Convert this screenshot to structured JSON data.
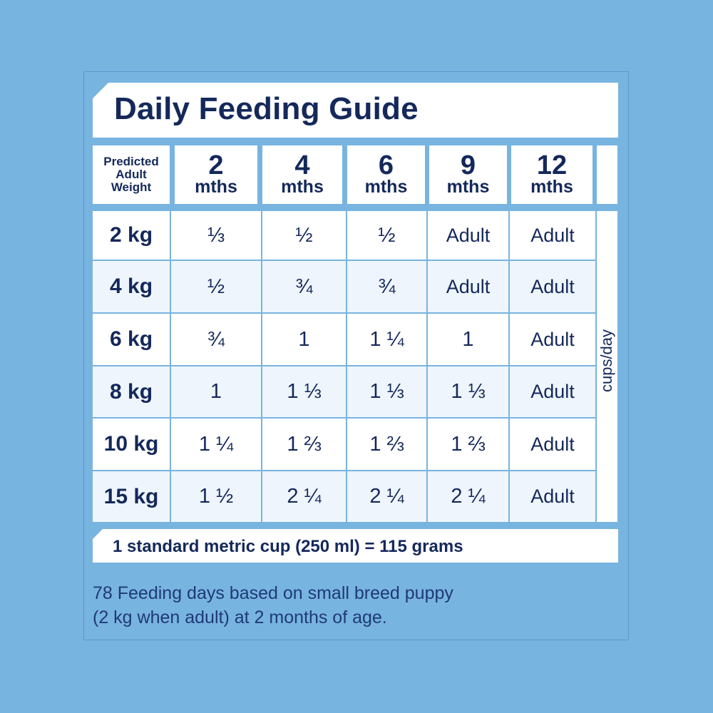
{
  "title": "Daily Feeding Guide",
  "header": {
    "weight_label_lines": [
      "Predicted",
      "Adult",
      "Weight"
    ],
    "columns": [
      {
        "num": "2",
        "unit": "mths"
      },
      {
        "num": "4",
        "unit": "mths"
      },
      {
        "num": "6",
        "unit": "mths"
      },
      {
        "num": "9",
        "unit": "mths"
      },
      {
        "num": "12",
        "unit": "mths"
      }
    ]
  },
  "rows": [
    {
      "weight": "2 kg",
      "values": [
        "⅓",
        "½",
        "½",
        "Adult",
        "Adult"
      ]
    },
    {
      "weight": "4 kg",
      "values": [
        "½",
        "¾",
        "¾",
        "Adult",
        "Adult"
      ]
    },
    {
      "weight": "6 kg",
      "values": [
        "¾",
        "1",
        "1 ¼",
        "1",
        "Adult"
      ]
    },
    {
      "weight": "8 kg",
      "values": [
        "1",
        "1 ⅓",
        "1 ⅓",
        "1 ⅓",
        "Adult"
      ]
    },
    {
      "weight": "10 kg",
      "values": [
        "1 ¼",
        "1 ⅔",
        "1 ⅔",
        "1 ⅔",
        "Adult"
      ]
    },
    {
      "weight": "15 kg",
      "values": [
        "1 ½",
        "2 ¼",
        "2 ¼",
        "2 ¼",
        "Adult"
      ]
    }
  ],
  "unit_label": "cups/day",
  "footer": "1 standard metric cup (250 ml) = 115 grams",
  "note_lines": [
    "78 Feeding days based on small breed puppy",
    "(2 kg when adult) at 2 months of age."
  ]
}
